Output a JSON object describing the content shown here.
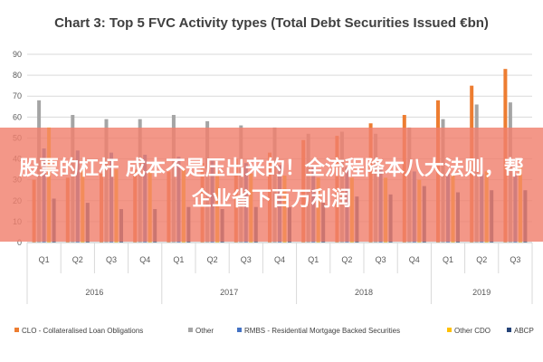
{
  "chart_data": {
    "type": "bar",
    "title": "Chart 3: Top 5 FVC Activity types (Total Debt Securities Issued €bn)",
    "categories": [
      "Q1",
      "Q2",
      "Q3",
      "Q4",
      "Q1",
      "Q2",
      "Q3",
      "Q4",
      "Q1",
      "Q2",
      "Q3",
      "Q4",
      "Q1",
      "Q2",
      "Q3"
    ],
    "years": [
      {
        "label": "2016",
        "span": 4
      },
      {
        "label": "2017",
        "span": 4
      },
      {
        "label": "2018",
        "span": 4
      },
      {
        "label": "2019",
        "span": 3
      }
    ],
    "ylim": [
      0,
      90
    ],
    "yticks": [
      0,
      10,
      20,
      30,
      40,
      50,
      60,
      70,
      80,
      90
    ],
    "grid": true,
    "legend_position": "bottom",
    "series": [
      {
        "name": "CLO - Collateralised Loan Obligations",
        "color": "#ED7D31",
        "values": [
          30,
          31,
          33,
          35,
          34,
          38,
          40,
          43,
          49,
          51,
          57,
          61,
          68,
          75,
          83
        ]
      },
      {
        "name": "Other",
        "color": "#A5A5A5",
        "values": [
          68,
          61,
          59,
          59,
          61,
          58,
          56,
          55,
          52,
          53,
          52,
          55,
          59,
          66,
          67
        ]
      },
      {
        "name": "RMBS - Residential Mortgage Backed Securities",
        "color": "#4472C4",
        "values": [
          45,
          44,
          43,
          42,
          41,
          40,
          38,
          37,
          36,
          36,
          35,
          34,
          33,
          33,
          32
        ]
      },
      {
        "name": "Other CDO",
        "color": "#FFC000",
        "values": [
          55,
          36,
          35,
          34,
          35,
          34,
          33,
          32,
          31,
          31,
          31,
          30,
          32,
          34,
          36
        ]
      },
      {
        "name": "ABCP",
        "color": "#264478",
        "values": [
          21,
          19,
          16,
          16,
          17,
          16,
          17,
          17,
          19,
          22,
          23,
          27,
          24,
          25,
          25
        ]
      }
    ]
  },
  "overlay": {
    "text": "股票的杠杆 成本不是压出来的！全流程降本八大法则，帮企业省下百万利润"
  }
}
